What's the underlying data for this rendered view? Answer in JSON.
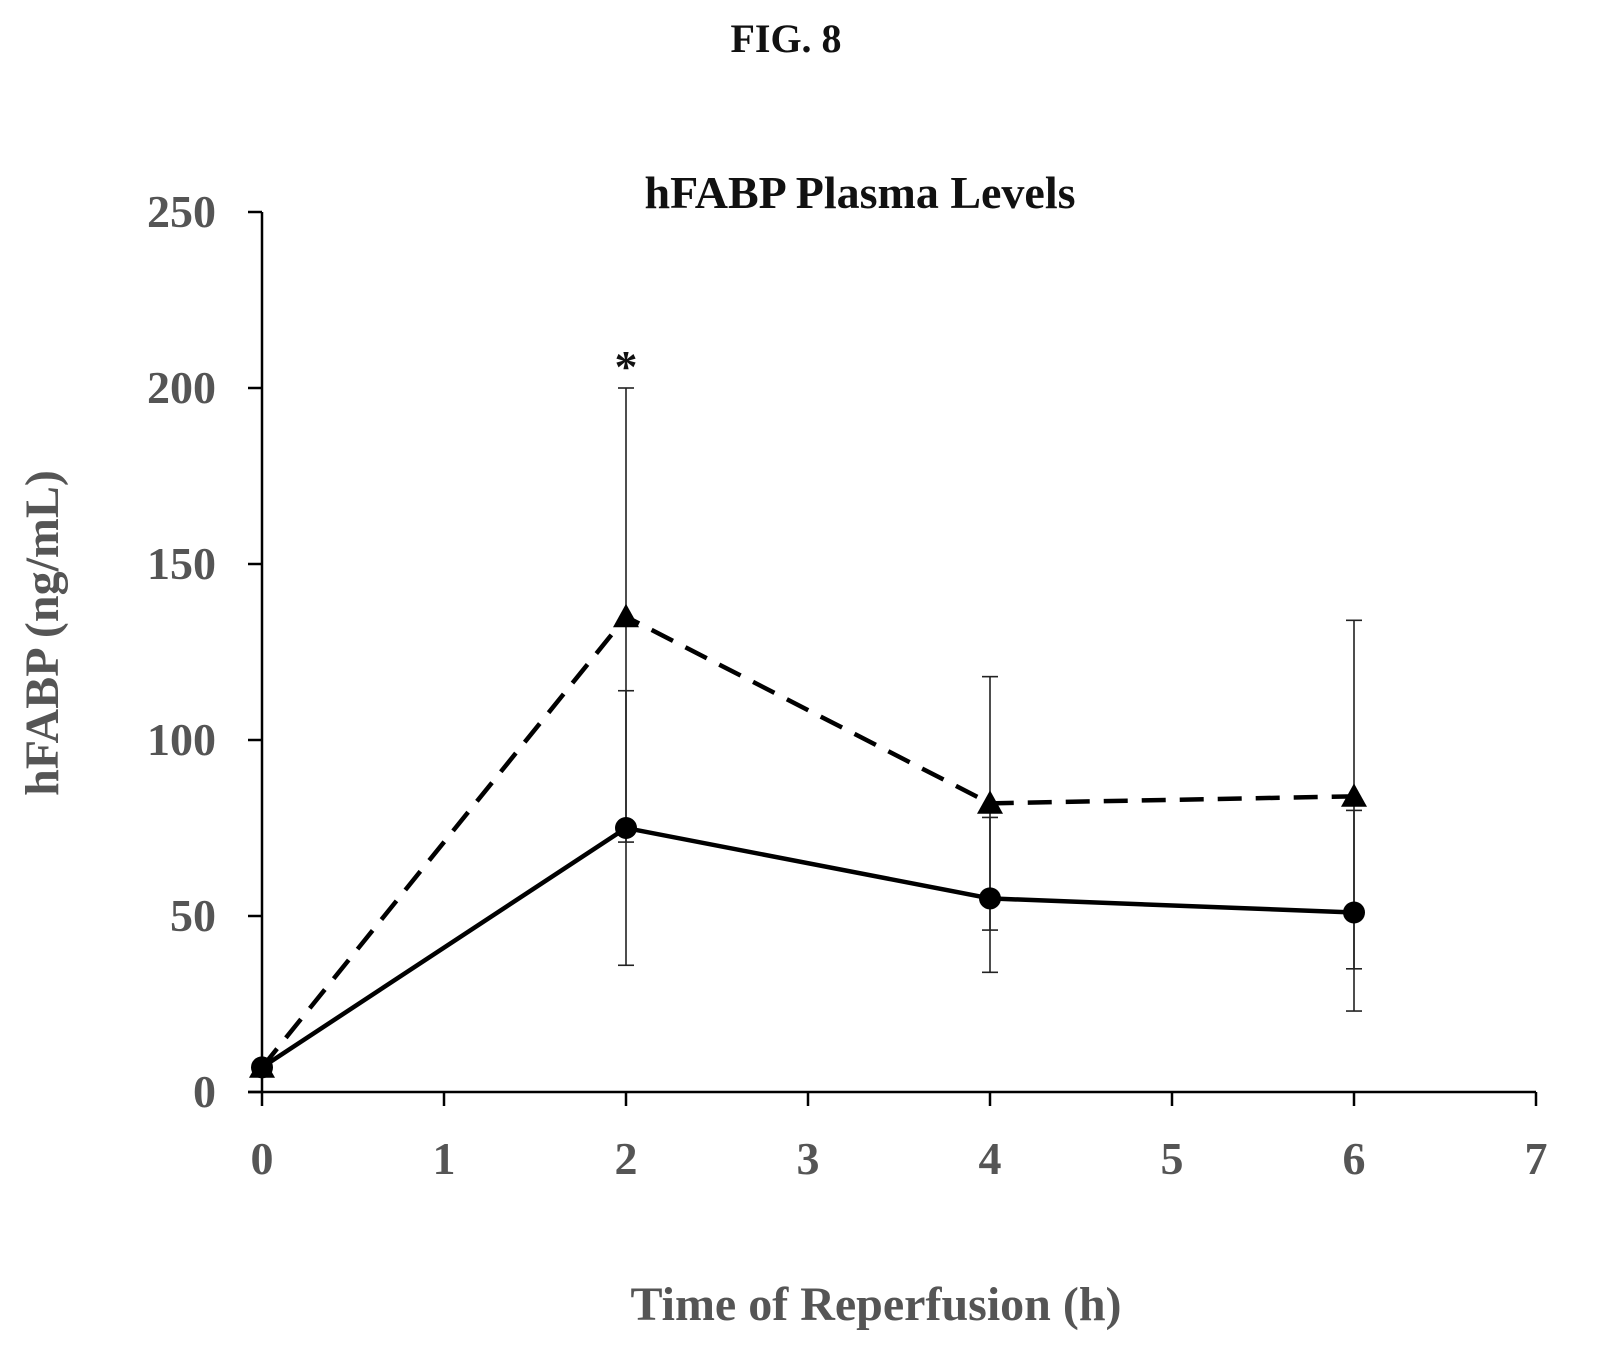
{
  "figure": {
    "label": "FIG. 8"
  },
  "chart_data": {
    "type": "line",
    "title": "hFABP Plasma Levels",
    "xlabel": "Time of Reperfusion (h)",
    "ylabel": "hFABP (ng/mL)",
    "xlim": [
      0,
      7
    ],
    "ylim": [
      0,
      250
    ],
    "x_ticks": [
      "0",
      "1",
      "2",
      "3",
      "4",
      "5",
      "6",
      "7"
    ],
    "y_ticks": [
      "0",
      "50",
      "100",
      "150",
      "200",
      "250"
    ],
    "grid": false,
    "legend": "none",
    "series": [
      {
        "line_style": "dashed",
        "marker": "triangle",
        "color": "#000000",
        "x": [
          0,
          2,
          4,
          6
        ],
        "y": [
          7,
          135,
          82,
          84
        ],
        "error_upper": [
          7,
          200,
          118,
          134
        ],
        "error_lower": [
          7,
          71,
          46,
          35
        ]
      },
      {
        "line_style": "solid",
        "marker": "circle",
        "color": "#000000",
        "x": [
          0,
          2,
          4,
          6
        ],
        "y": [
          7,
          75,
          55,
          51
        ],
        "error_upper": [
          7,
          114,
          78,
          80
        ],
        "error_lower": [
          7,
          36,
          34,
          23
        ]
      }
    ],
    "annotations": [
      {
        "text": "*",
        "x": 2,
        "y": 200
      }
    ]
  }
}
